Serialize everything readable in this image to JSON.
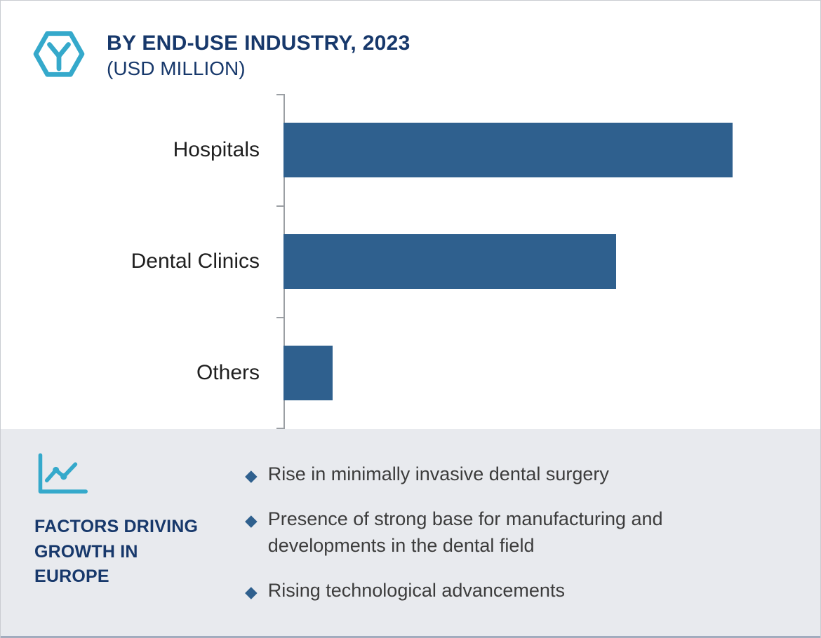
{
  "header": {
    "title_line1": "BY END-USE INDUSTRY, 2023",
    "title_line2": "(USD MILLION)"
  },
  "chart_data": {
    "type": "bar",
    "orientation": "horizontal",
    "title": "BY END-USE INDUSTRY, 2023 (USD MILLION)",
    "categories": [
      "Hospitals",
      "Dental Clinics",
      "Others"
    ],
    "values": [
      100,
      74,
      11
    ],
    "values_note": "relative bar lengths, no numeric axis labels shown",
    "xlabel": "",
    "ylabel": "",
    "xlim": [
      0,
      100
    ],
    "grid": false,
    "legend": "none",
    "bar_color": "#2f608e",
    "axis_color": "#9b9fa4"
  },
  "factors": {
    "heading": "FACTORS DRIVING GROWTH IN EUROPE",
    "items": [
      "Rise in minimally invasive dental surgery",
      "Presence of strong base for manufacturing and developments in the dental field",
      "Rising technological advancements"
    ]
  },
  "icons": {
    "logo": "hexagon-y-logo",
    "factors": "line-chart-icon",
    "bullet_char": "◆"
  },
  "colors": {
    "bar": "#2f608e",
    "navy_text": "#17386b",
    "teal_accent": "#35a9cb",
    "panel_bg": "#e8eaee",
    "footer_bar": "#1e3a6d",
    "bullet": "#2f608e",
    "body_text": "#3c3c3c"
  }
}
